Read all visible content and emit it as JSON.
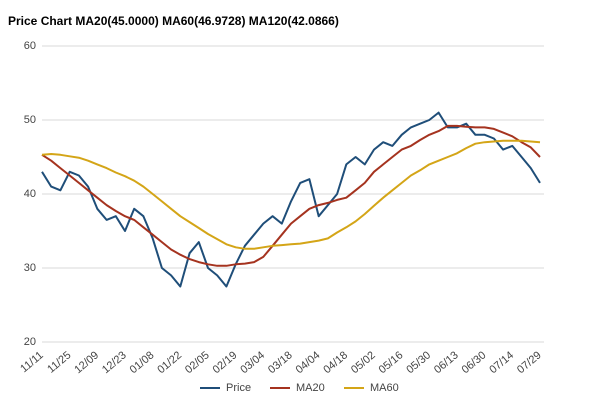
{
  "chart_data": {
    "type": "line",
    "title": "Price Chart MA20(45.0000) MA60(46.9728) MA120(42.0866)",
    "categories": [
      "11/11",
      null,
      null,
      "11/25",
      null,
      null,
      "12/09",
      null,
      null,
      "12/23",
      null,
      null,
      "01/08",
      null,
      null,
      "01/22",
      null,
      null,
      "02/05",
      null,
      null,
      "02/19",
      null,
      null,
      "03/04",
      null,
      null,
      "03/18",
      null,
      null,
      "04/04",
      null,
      null,
      "04/18",
      null,
      null,
      "05/02",
      null,
      null,
      "05/16",
      null,
      null,
      "05/30",
      null,
      null,
      "06/13",
      null,
      null,
      "06/30",
      null,
      null,
      "07/14",
      null,
      null,
      "07/29"
    ],
    "series": [
      {
        "name": "Price",
        "color": "#1f4e79",
        "values": [
          43,
          41,
          40.5,
          43,
          42.5,
          41,
          38,
          36.5,
          37,
          35,
          38,
          37,
          34,
          30,
          29,
          27.5,
          32,
          33.5,
          30,
          29,
          27.5,
          30.5,
          33,
          34.5,
          36,
          37,
          36,
          39,
          41.5,
          42,
          37,
          38.5,
          40,
          44,
          45,
          44,
          46,
          47,
          46.5,
          48,
          49,
          49.5,
          50,
          51,
          49,
          49,
          49.5,
          48,
          48,
          47.5,
          46,
          46.5,
          45,
          43.5,
          41.5
        ]
      },
      {
        "name": "MA20",
        "color": "#a5331f",
        "values": [
          45.3,
          44.5,
          43.5,
          42.5,
          41.5,
          40.5,
          39.5,
          38.5,
          37.7,
          37,
          36.5,
          35.5,
          34.5,
          33.5,
          32.5,
          31.8,
          31.2,
          30.8,
          30.5,
          30.3,
          30.3,
          30.5,
          30.6,
          30.8,
          31.5,
          33,
          34.5,
          36,
          37,
          38,
          38.5,
          38.8,
          39.2,
          39.5,
          40.5,
          41.5,
          43,
          44,
          45,
          46,
          46.5,
          47.3,
          48,
          48.5,
          49.2,
          49.2,
          49.1,
          49,
          49,
          48.8,
          48.3,
          47.8,
          47,
          46.3,
          45
        ]
      },
      {
        "name": "MA60",
        "color": "#d4a517",
        "values": [
          45.3,
          45.4,
          45.3,
          45.1,
          44.9,
          44.5,
          44,
          43.5,
          42.9,
          42.4,
          41.8,
          41,
          40,
          39,
          38,
          37,
          36.2,
          35.4,
          34.6,
          33.9,
          33.2,
          32.8,
          32.6,
          32.6,
          32.8,
          33,
          33.1,
          33.2,
          33.3,
          33.5,
          33.7,
          34,
          34.8,
          35.5,
          36.3,
          37.3,
          38.4,
          39.5,
          40.5,
          41.5,
          42.5,
          43.2,
          44,
          44.5,
          45,
          45.5,
          46.2,
          46.8,
          47,
          47.1,
          47.2,
          47.2,
          47.2,
          47.1,
          47
        ]
      }
    ],
    "ylim": [
      20,
      60
    ],
    "yticks": [
      20,
      30,
      40,
      50,
      60
    ],
    "grid": true,
    "legend": "bottom"
  }
}
